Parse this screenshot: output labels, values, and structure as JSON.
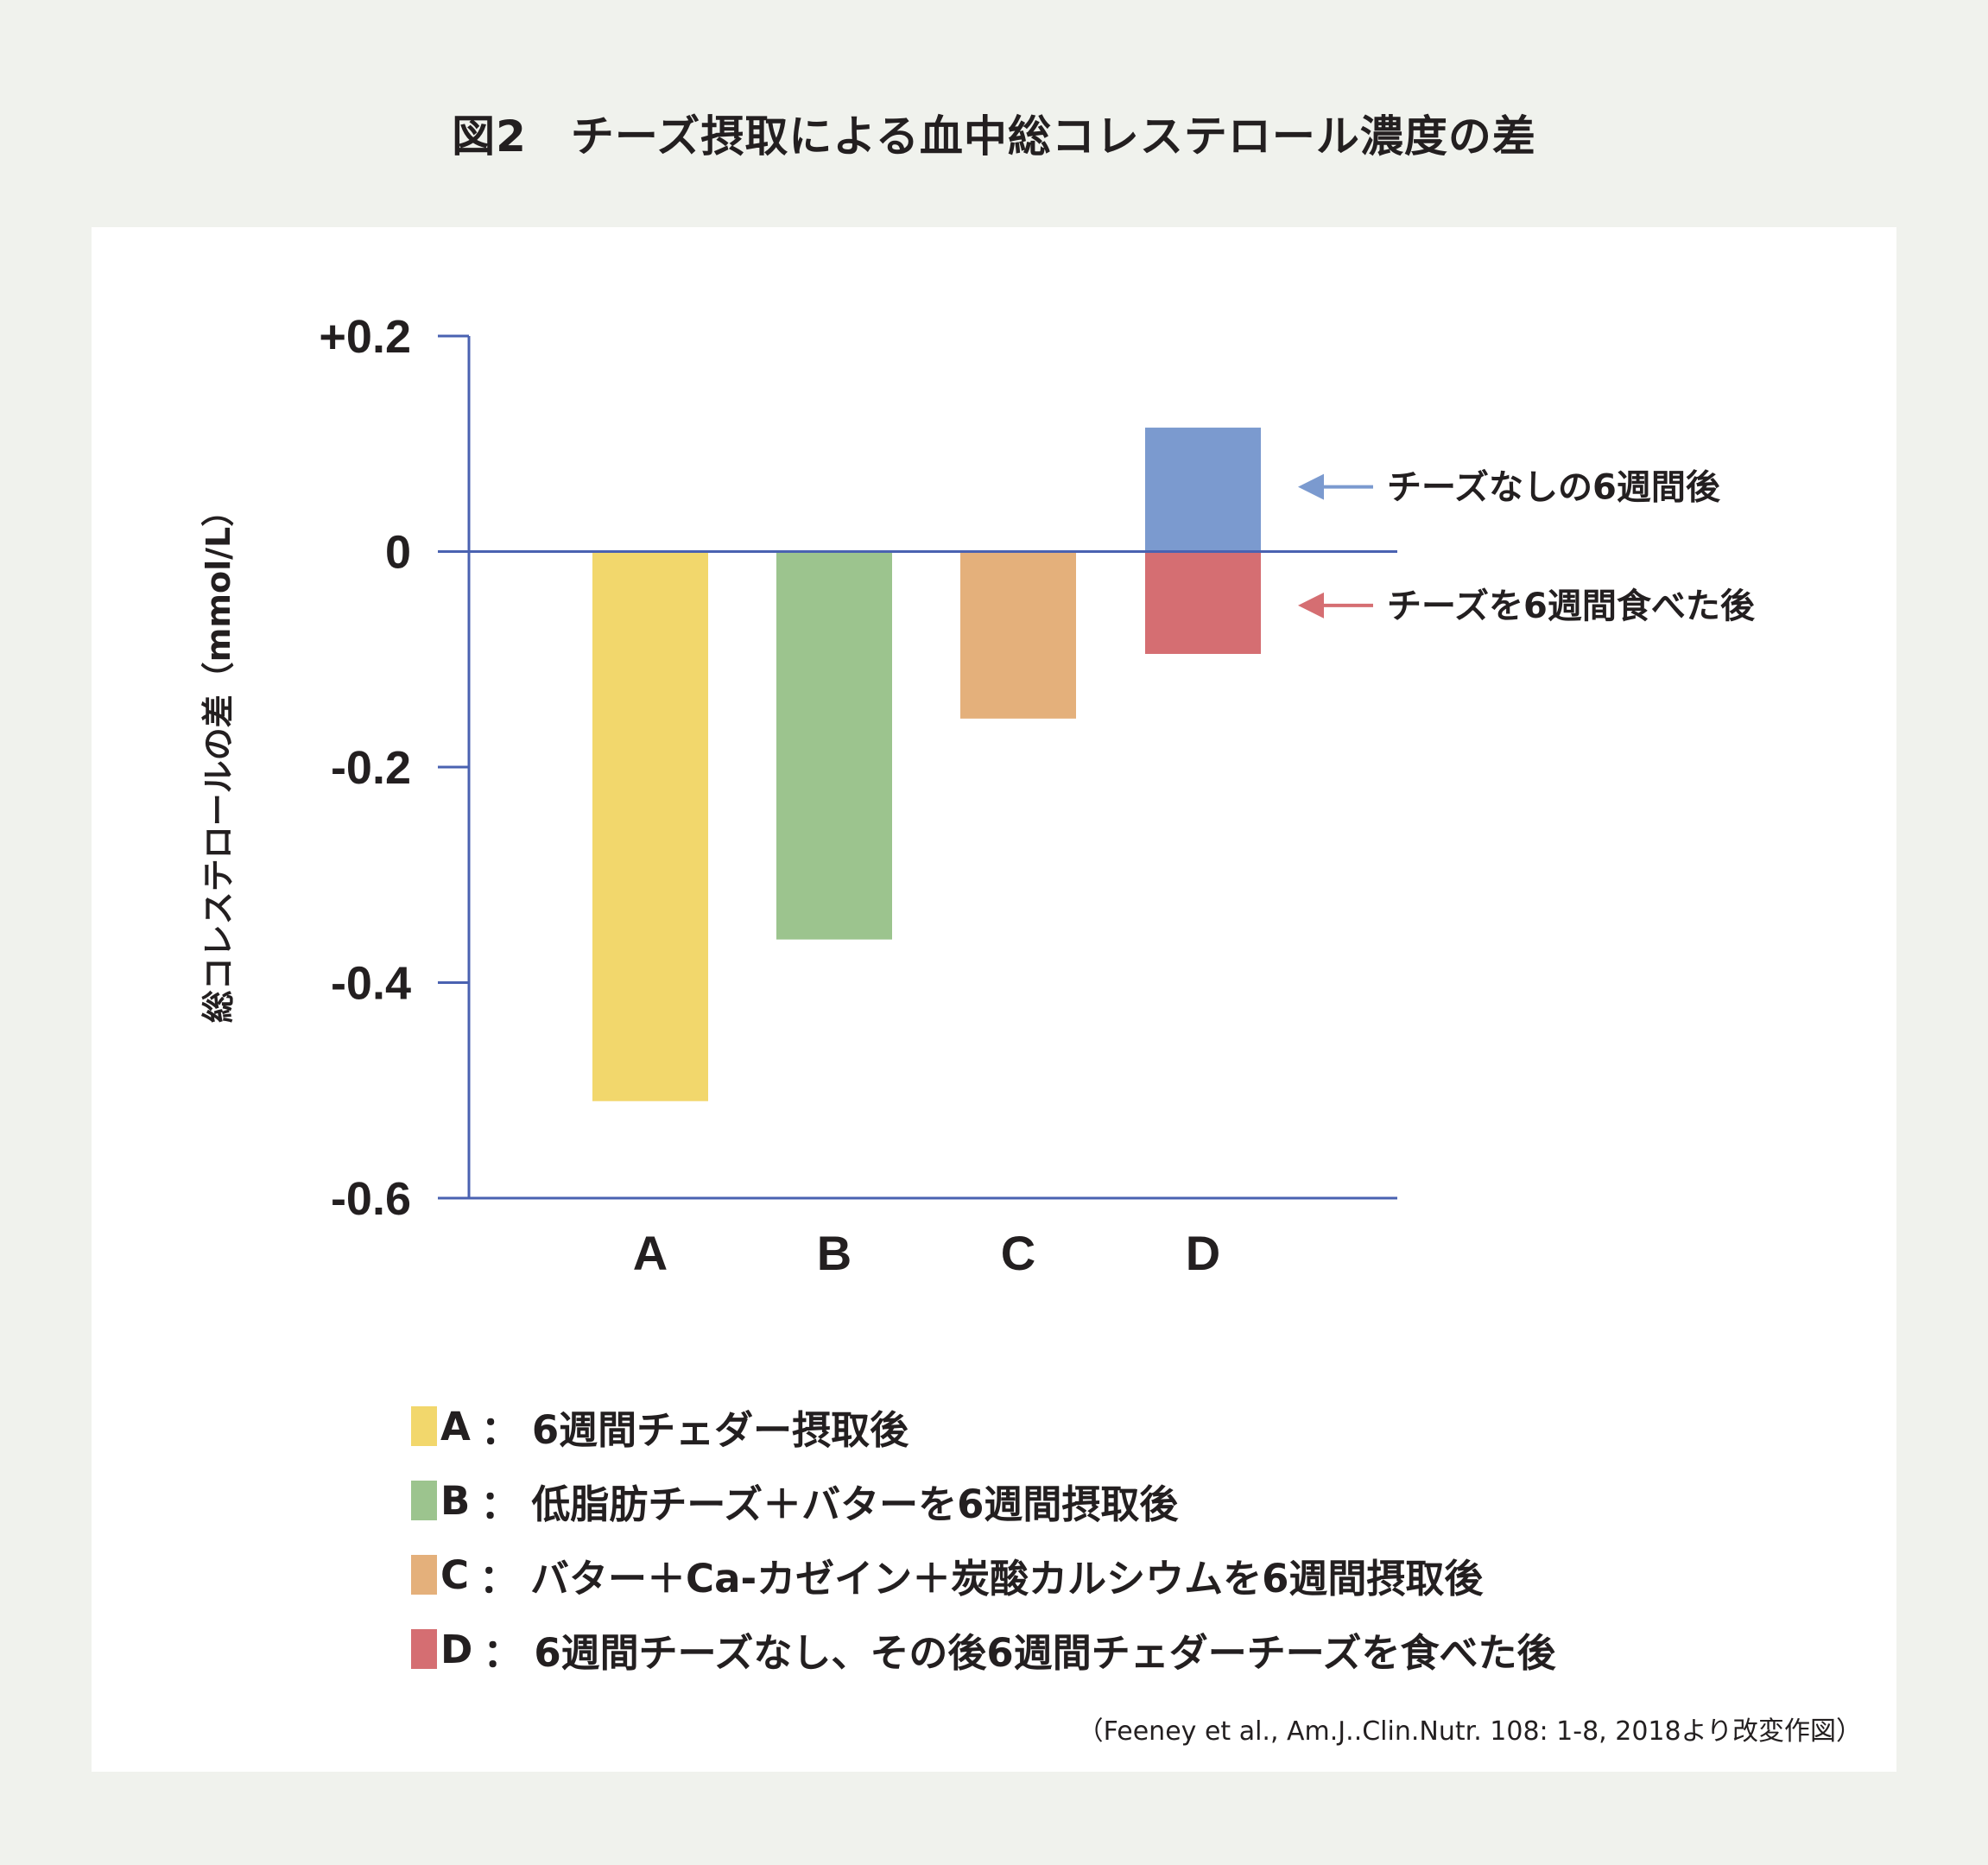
{
  "figure_title": "図2　チーズ摂取による血中総コレステロール濃度の差",
  "chart_data": {
    "type": "bar",
    "title": "図2　チーズ摂取による血中総コレステロール濃度の差",
    "ylabel": "総コレステロールの差（mmol/L）",
    "xlabel": "",
    "ylim": [
      -0.6,
      0.2
    ],
    "yticks": [
      0.2,
      0,
      -0.2,
      -0.4,
      -0.6
    ],
    "ytick_labels": [
      "+0.2",
      "0",
      "-0.2",
      "-0.4",
      "-0.6"
    ],
    "categories": [
      "A",
      "B",
      "C",
      "D"
    ],
    "bars": [
      {
        "category": "A",
        "value": -0.51,
        "color": "#f2d76c"
      },
      {
        "category": "B",
        "value": -0.36,
        "color": "#9cc48e"
      },
      {
        "category": "C",
        "value": -0.155,
        "color": "#e4b07b"
      },
      {
        "category": "D",
        "value": 0.115,
        "color": "#7b9acf"
      },
      {
        "category": "D",
        "value": -0.095,
        "color": "#d56e72"
      }
    ],
    "annotations": [
      {
        "text": "チーズなしの6週間後",
        "value": 0.06,
        "color": "#7b9acf"
      },
      {
        "text": "チーズを6週間食べた後",
        "value": -0.05,
        "color": "#d56e72"
      }
    ],
    "axis_color": "#4a62b1",
    "grid": false
  },
  "legend": [
    {
      "key": "A",
      "sep": "：",
      "text": "6週間チェダー摂取後",
      "color": "#f2d76c"
    },
    {
      "key": "B",
      "sep": "：",
      "text": "低脂肪チーズ＋バターを6週間摂取後",
      "color": "#9cc48e"
    },
    {
      "key": "C",
      "sep": "：",
      "text": "バター＋Ca-カゼイン＋炭酸カルシウムを6週間摂取後",
      "color": "#e4b07b"
    },
    {
      "key": "D",
      "sep": "：",
      "text": "6週間チーズなし、その後6週間チェダーチーズを食べた後",
      "color": "#d56e72"
    }
  ],
  "source": "（Feeney et al., Am.J..Clin.Nutr. 108: 1-8, 2018より改変作図）"
}
